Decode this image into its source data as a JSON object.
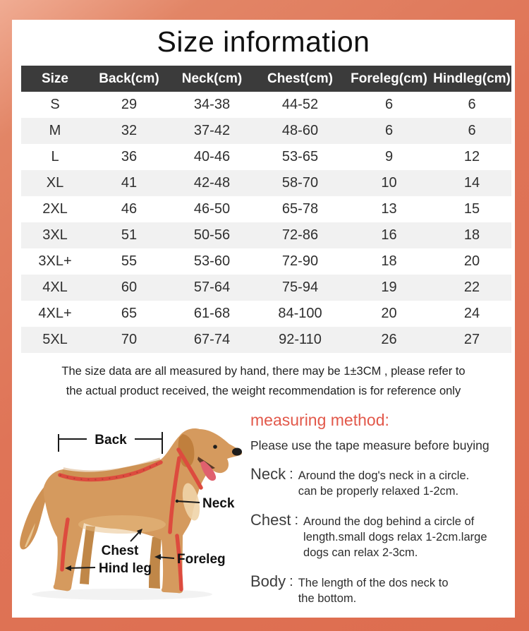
{
  "page": {
    "title": "Size information"
  },
  "table": {
    "headers": [
      "Size",
      "Back(cm)",
      "Neck(cm)",
      "Chest(cm)",
      "Foreleg(cm)",
      "Hindleg(cm)"
    ],
    "rows": [
      [
        "S",
        "29",
        "34-38",
        "44-52",
        "6",
        "6"
      ],
      [
        "M",
        "32",
        "37-42",
        "48-60",
        "6",
        "6"
      ],
      [
        "L",
        "36",
        "40-46",
        "53-65",
        "9",
        "12"
      ],
      [
        "XL",
        "41",
        "42-48",
        "58-70",
        "10",
        "14"
      ],
      [
        "2XL",
        "46",
        "46-50",
        "65-78",
        "13",
        "15"
      ],
      [
        "3XL",
        "51",
        "50-56",
        "72-86",
        "16",
        "18"
      ],
      [
        "3XL+",
        "55",
        "53-60",
        "72-90",
        "18",
        "20"
      ],
      [
        "4XL",
        "60",
        "57-64",
        "75-94",
        "19",
        "22"
      ],
      [
        "4XL+",
        "65",
        "61-68",
        "84-100",
        "20",
        "24"
      ],
      [
        "5XL",
        "70",
        "67-74",
        "92-110",
        "26",
        "27"
      ]
    ]
  },
  "note": {
    "line1": "The size data are all measured by hand, there may be 1±3CM , please refer to",
    "line2": "the actual product received, the weight recommendation is for reference only"
  },
  "diagram": {
    "labels": {
      "back": "Back",
      "neck": "Neck",
      "chest": "Chest",
      "hind_leg": "Hind leg",
      "foreleg": "Foreleg"
    }
  },
  "measuring": {
    "heading": "measuring method:",
    "intro": "Please use the tape measure before buying",
    "colon": ":",
    "items": [
      {
        "term": "Neck",
        "lines": [
          "Around the dog's neck in a circle.",
          "can be properly relaxed 1-2cm."
        ]
      },
      {
        "term": "Chest",
        "lines": [
          "Around the dog behind a circle of",
          "length.small dogs relax 1-2cm.large",
          "dogs can relax 2-3cm."
        ]
      },
      {
        "term": "Body",
        "lines": [
          "The length of the dos neck to",
          "the bottom."
        ]
      }
    ]
  },
  "colors": {
    "frame": "#df7457",
    "header_bg": "#3b3b3b",
    "row_alt": "#f1f1f1",
    "accent": "#e2584a",
    "tape": "#dd4b3e"
  }
}
